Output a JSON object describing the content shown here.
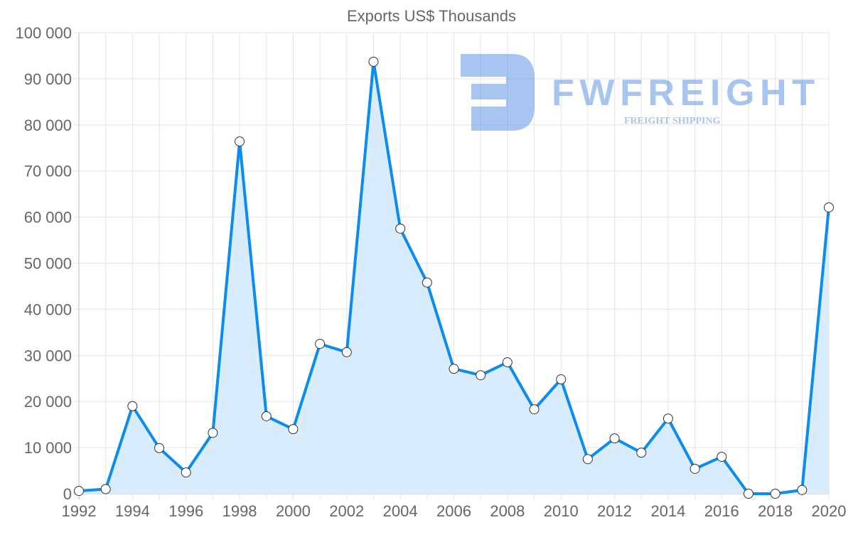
{
  "chart_data": {
    "type": "line",
    "title": "Exports US$ Thousands",
    "xlabel": "",
    "ylabel": "",
    "x": [
      1992,
      1993,
      1994,
      1995,
      1996,
      1997,
      1998,
      1999,
      2000,
      2001,
      2002,
      2003,
      2004,
      2005,
      2006,
      2007,
      2008,
      2009,
      2010,
      2011,
      2012,
      2013,
      2014,
      2015,
      2016,
      2017,
      2018,
      2019,
      2020
    ],
    "series": [
      {
        "name": "Exports US$ Thousands",
        "color": "#0a8cf0",
        "fill": "#d9ecfc",
        "values": [
          600,
          1000,
          19000,
          9900,
          4600,
          13200,
          76400,
          16800,
          14000,
          32500,
          30700,
          93700,
          57500,
          45800,
          27100,
          25700,
          28500,
          18300,
          24800,
          7500,
          12000,
          8900,
          16300,
          5400,
          8000,
          0,
          0,
          800,
          62100
        ]
      }
    ],
    "ylim": [
      0,
      100000
    ],
    "xlim": [
      1992,
      2020
    ],
    "y_ticks": [
      "0",
      "10 000",
      "20 000",
      "30 000",
      "40 000",
      "50 000",
      "60 000",
      "70 000",
      "80 000",
      "90 000",
      "100 000"
    ],
    "x_ticks": [
      "1992",
      "1994",
      "1996",
      "1998",
      "2000",
      "2002",
      "2004",
      "2006",
      "2008",
      "2010",
      "2012",
      "2014",
      "2016",
      "2018",
      "2020"
    ],
    "grid": true,
    "legend": "none"
  },
  "watermark": {
    "brand": "FWFREIGHT",
    "tagline": "FREIGHT SHIPPING"
  }
}
